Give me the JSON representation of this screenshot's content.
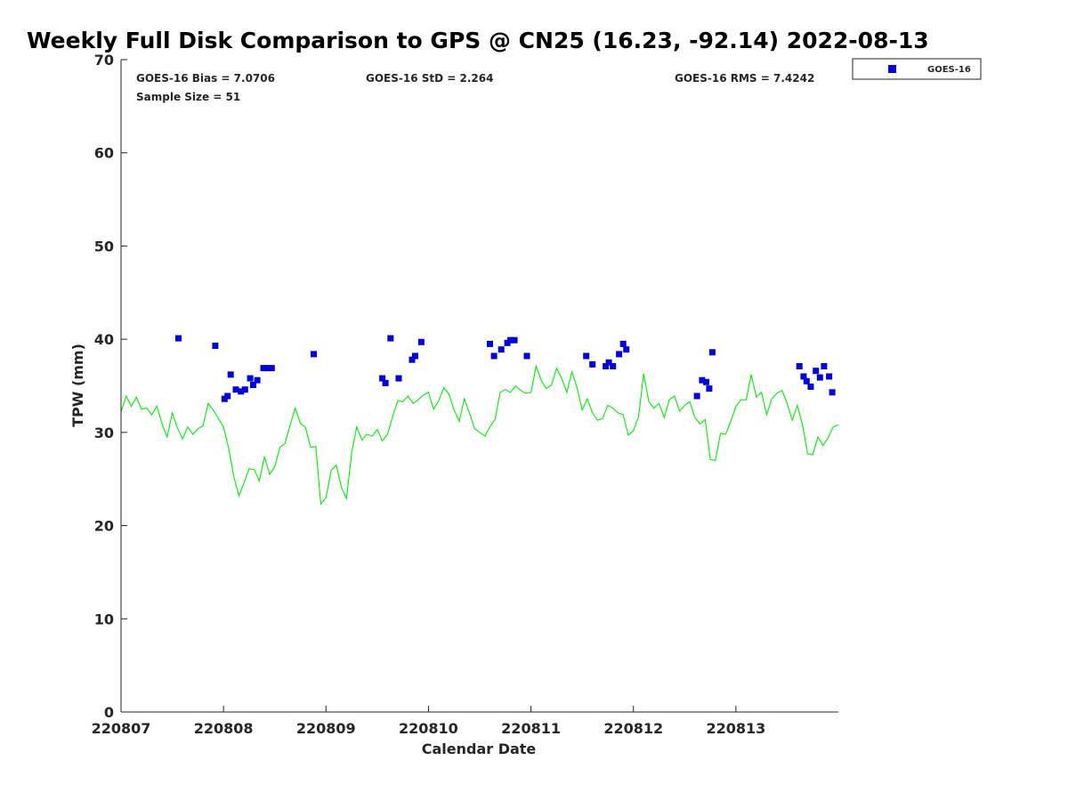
{
  "chart_data": {
    "type": "scatter",
    "title": "Weekly Full Disk Comparison to GPS @ CN25 (16.23, -92.14) 2022-08-13",
    "xlabel": "Calendar Date",
    "ylabel": "TPW (mm)",
    "xlim": [
      0,
      7
    ],
    "ylim": [
      0,
      70
    ],
    "x_ticks": [
      0,
      1,
      2,
      3,
      4,
      5,
      6
    ],
    "x_tick_labels": [
      "220807",
      "220808",
      "220809",
      "220810",
      "220811",
      "220812",
      "220813"
    ],
    "y_ticks": [
      0,
      10,
      20,
      30,
      40,
      50,
      60,
      70
    ],
    "y_tick_labels": [
      "0",
      "10",
      "20",
      "30",
      "40",
      "50",
      "60",
      "70"
    ],
    "stats": {
      "bias": "GOES-16 Bias = 7.0706",
      "std": "GOES-16 StD = 2.264",
      "rms": "GOES-16 RMS = 7.4242",
      "sample": "Sample Size = 51"
    },
    "legend": {
      "position": "outside-top-right",
      "entries": [
        "GOES-16"
      ]
    },
    "colors": {
      "goes": "#0000dd",
      "gps": "#00ee00"
    },
    "grid": false,
    "series": [
      {
        "name": "GOES-16",
        "marker": "square",
        "points": [
          [
            0.56,
            40.1
          ],
          [
            0.92,
            39.3
          ],
          [
            1.01,
            33.6
          ],
          [
            1.04,
            33.9
          ],
          [
            1.07,
            36.2
          ],
          [
            1.12,
            34.6
          ],
          [
            1.17,
            34.4
          ],
          [
            1.21,
            34.6
          ],
          [
            1.26,
            35.8
          ],
          [
            1.29,
            35.1
          ],
          [
            1.33,
            35.6
          ],
          [
            1.39,
            36.9
          ],
          [
            1.43,
            36.9
          ],
          [
            1.47,
            36.9
          ],
          [
            1.88,
            38.4
          ],
          [
            2.55,
            35.8
          ],
          [
            2.58,
            35.3
          ],
          [
            2.63,
            40.1
          ],
          [
            2.71,
            35.8
          ],
          [
            2.84,
            37.8
          ],
          [
            2.87,
            38.2
          ],
          [
            2.93,
            39.7
          ],
          [
            3.6,
            39.5
          ],
          [
            3.64,
            38.2
          ],
          [
            3.71,
            38.9
          ],
          [
            3.77,
            39.6
          ],
          [
            3.8,
            39.9
          ],
          [
            3.84,
            39.9
          ],
          [
            3.96,
            38.2
          ],
          [
            4.54,
            38.2
          ],
          [
            4.6,
            37.3
          ],
          [
            4.73,
            37.1
          ],
          [
            4.76,
            37.5
          ],
          [
            4.8,
            37.1
          ],
          [
            4.86,
            38.4
          ],
          [
            4.9,
            39.5
          ],
          [
            4.93,
            38.9
          ],
          [
            5.62,
            33.9
          ],
          [
            5.67,
            35.6
          ],
          [
            5.71,
            35.4
          ],
          [
            5.74,
            34.7
          ],
          [
            5.77,
            38.6
          ],
          [
            6.62,
            37.1
          ],
          [
            6.66,
            36.0
          ],
          [
            6.69,
            35.5
          ],
          [
            6.73,
            34.9
          ],
          [
            6.78,
            36.6
          ],
          [
            6.82,
            35.9
          ],
          [
            6.86,
            37.1
          ],
          [
            6.91,
            36.0
          ],
          [
            6.94,
            34.3
          ]
        ]
      },
      {
        "line": true,
        "x": [
          0.0,
          0.05,
          0.1,
          0.15,
          0.2,
          0.25,
          0.3,
          0.35,
          0.4,
          0.45,
          0.5,
          0.55,
          0.6,
          0.65,
          0.7,
          0.75,
          0.8,
          0.85,
          0.9,
          0.95,
          1.0,
          1.05,
          1.1,
          1.15,
          1.2,
          1.25,
          1.3,
          1.35,
          1.4,
          1.45,
          1.5,
          1.55,
          1.6,
          1.65,
          1.7,
          1.75,
          1.8,
          1.85,
          1.9,
          1.95,
          2.0,
          2.05,
          2.1,
          2.15,
          2.2,
          2.25,
          2.3,
          2.35,
          2.4,
          2.45,
          2.5,
          2.55,
          2.6,
          2.65,
          2.7,
          2.75,
          2.8,
          2.85,
          2.9,
          2.95,
          3.0,
          3.05,
          3.1,
          3.15,
          3.2,
          3.25,
          3.3,
          3.35,
          3.4,
          3.45,
          3.5,
          3.55,
          3.6,
          3.65,
          3.7,
          3.75,
          3.8,
          3.85,
          3.9,
          3.95,
          4.0,
          4.05,
          4.1,
          4.15,
          4.2,
          4.25,
          4.3,
          4.35,
          4.4,
          4.45,
          4.5,
          4.55,
          4.6,
          4.65,
          4.7,
          4.75,
          4.8,
          4.85,
          4.9,
          4.95,
          5.0,
          5.05,
          5.1,
          5.15,
          5.2,
          5.25,
          5.3,
          5.35,
          5.4,
          5.45,
          5.5,
          5.55,
          5.6,
          5.65,
          5.7,
          5.75,
          5.8,
          5.85,
          5.9,
          5.95,
          6.0,
          6.05,
          6.1,
          6.15,
          6.2,
          6.25,
          6.3,
          6.35,
          6.4,
          6.45,
          6.5,
          6.55,
          6.6,
          6.65,
          6.7,
          6.75,
          6.8,
          6.85,
          6.9,
          6.95,
          7.0
        ],
        "y": [
          32.2,
          33.9,
          32.8,
          33.8,
          32.5,
          32.6,
          31.9,
          32.8,
          30.9,
          29.5,
          32.1,
          30.5,
          29.3,
          30.6,
          29.8,
          30.4,
          30.7,
          33.1,
          32.4,
          31.5,
          30.6,
          28.3,
          25.3,
          23.2,
          24.6,
          26.1,
          26.0,
          24.8,
          27.4,
          25.5,
          26.3,
          28.4,
          28.8,
          30.8,
          32.6,
          31.0,
          30.5,
          28.4,
          28.5,
          22.3,
          23.0,
          25.9,
          26.5,
          24.1,
          22.9,
          27.8,
          30.6,
          29.2,
          29.8,
          29.6,
          30.3,
          29.1,
          29.8,
          31.7,
          33.4,
          33.3,
          33.9,
          33.1,
          33.5,
          34.0,
          34.3,
          32.5,
          33.4,
          34.8,
          34.1,
          32.4,
          31.2,
          33.6,
          32.1,
          30.4,
          30.0,
          29.6,
          30.6,
          31.4,
          34.3,
          34.6,
          34.3,
          35.0,
          34.5,
          34.2,
          34.3,
          37.1,
          35.6,
          34.7,
          35.1,
          36.9,
          35.8,
          34.3,
          36.5,
          34.8,
          32.4,
          33.6,
          32.1,
          31.3,
          31.5,
          32.9,
          32.6,
          32.1,
          31.9,
          29.7,
          30.2,
          31.7,
          36.3,
          33.3,
          32.6,
          33.1,
          31.6,
          33.5,
          33.9,
          32.3,
          32.9,
          33.3,
          31.6,
          30.9,
          31.4,
          27.1,
          27.0,
          29.9,
          29.8,
          31.2,
          32.8,
          33.5,
          33.5,
          36.2,
          33.8,
          34.3,
          31.9,
          33.6,
          34.2,
          34.5,
          33.1,
          31.3,
          32.9,
          30.8,
          27.7,
          27.6,
          29.5,
          28.6,
          29.4,
          30.6,
          30.8
        ]
      }
    ]
  }
}
